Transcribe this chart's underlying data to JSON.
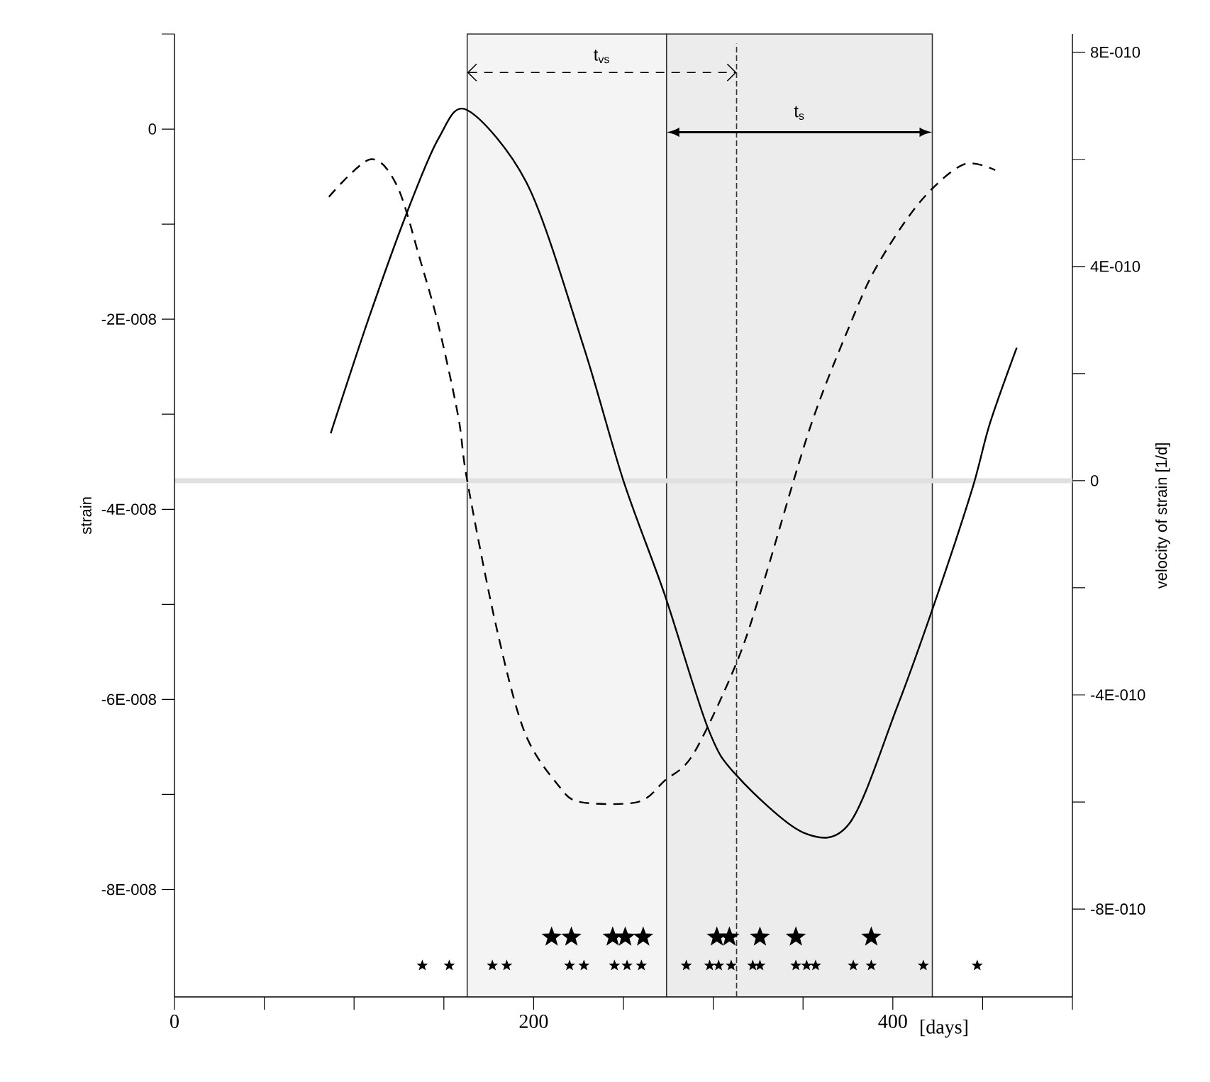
{
  "chart_data": {
    "type": "line",
    "xlabel": "[days]",
    "ylabel": "strain",
    "y2label": "velocity of strain [1/d]",
    "xlim": [
      0,
      500
    ],
    "xticks": [
      0,
      {
        "value": 50,
        "label": null
      },
      {
        "value": 100,
        "label": null
      },
      {
        "value": 150,
        "label": null
      },
      200,
      {
        "value": 250,
        "label": null
      },
      {
        "value": 300,
        "label": null
      },
      {
        "value": 350,
        "label": null
      },
      400,
      {
        "value": 450,
        "label": null
      },
      {
        "value": 500,
        "label": null
      }
    ],
    "ylim": [
      -9.13e-08,
      1e-08
    ],
    "yticks": [
      {
        "value": 1e-08,
        "label": null
      },
      0,
      {
        "value": -1e-08,
        "label": null
      },
      {
        "value": -2e-08,
        "label": "-2E-008"
      },
      {
        "value": -3e-08,
        "label": null
      },
      {
        "value": -4e-08,
        "label": "-4E-008"
      },
      {
        "value": -5e-08,
        "label": null
      },
      {
        "value": -6e-08,
        "label": "-6E-008"
      },
      {
        "value": -7e-08,
        "label": null
      },
      {
        "value": -8e-08,
        "label": "-8E-008"
      }
    ],
    "y2lim": [
      -9.64e-10,
      8.34e-10
    ],
    "y2ticks": [
      {
        "value": 8e-10,
        "label": "8E-010"
      },
      {
        "value": 6e-10,
        "label": null
      },
      {
        "value": 4e-10,
        "label": "4E-010"
      },
      {
        "value": 2e-10,
        "label": null
      },
      0,
      {
        "value": -2e-10,
        "label": null
      },
      {
        "value": -4e-10,
        "label": "-4E-010"
      },
      {
        "value": -6e-10,
        "label": null
      },
      {
        "value": -8e-10,
        "label": "-8E-010"
      }
    ],
    "series": [
      {
        "color": "#000000",
        "line_style": "solid",
        "x": [
          87,
          108,
          129,
          147,
          163,
          197,
          228,
          250,
          273,
          297,
          313,
          350,
          376,
          402,
          423,
          444,
          454,
          469
        ],
        "values": [
          -3.2e-08,
          -2e-08,
          -9e-09,
          -1e-09,
          2e-09,
          -6e-09,
          -2.3e-08,
          -3.7e-08,
          -4.9e-08,
          -6.3e-08,
          -6.8e-08,
          -7.4e-08,
          -7.3e-08,
          -6.1e-08,
          -5e-08,
          -3.8e-08,
          -3.1e-08,
          -2.3e-08
        ]
      },
      {
        "axis": "y2",
        "color": "#000000",
        "line_style": "dashed",
        "x": [
          86,
          109,
          124,
          137,
          147,
          158,
          163,
          179,
          195,
          214,
          226,
          258,
          273,
          289,
          313,
          328,
          354,
          376,
          391,
          415,
          439,
          457
        ],
        "values": [
          5.3e-10,
          6e-10,
          5.5e-10,
          4.1e-10,
          2.9e-10,
          1.2e-10,
          0,
          -2.7e-10,
          -4.7e-10,
          -5.7e-10,
          -6e-10,
          -6e-10,
          -5.6e-10,
          -5.1e-10,
          -3.4e-10,
          -1.9e-10,
          1e-10,
          2.9e-10,
          4e-10,
          5.2e-10,
          5.9e-10,
          5.8e-10
        ]
      },
      {
        "type": "scatter",
        "marker": "star",
        "color": "#000000",
        "x": [
          138,
          153,
          177,
          185,
          220,
          228,
          245,
          252,
          260,
          285,
          298,
          303,
          310,
          322,
          326,
          346,
          352,
          357,
          378,
          388,
          417,
          447
        ],
        "values": [
          -8.8e-08,
          -8.8e-08,
          -8.8e-08,
          -8.8e-08,
          -8.8e-08,
          -8.8e-08,
          -8.8e-08,
          -8.8e-08,
          -8.8e-08,
          -8.8e-08,
          -8.8e-08,
          -8.8e-08,
          -8.8e-08,
          -8.8e-08,
          -8.8e-08,
          -8.8e-08,
          -8.8e-08,
          -8.8e-08,
          -8.8e-08,
          -8.8e-08,
          -8.8e-08,
          -8.8e-08
        ]
      },
      {
        "type": "scatter",
        "marker": "star",
        "color": "#000000",
        "x": [
          210,
          221,
          244,
          251,
          261,
          302,
          309,
          326,
          346,
          388
        ],
        "values": [
          -8.5e-08,
          -8.5e-08,
          -8.5e-08,
          -8.5e-08,
          -8.5e-08,
          -8.5e-08,
          -8.5e-08,
          -8.5e-08,
          -8.5e-08,
          -8.5e-08
        ]
      }
    ],
    "bands": [
      {
        "axis": "x",
        "from": 163,
        "to": 274,
        "color": "#f4f4f4"
      },
      {
        "axis": "x",
        "from": 274,
        "to": 422,
        "color": "#ececec",
        "label": "t$_{s}$"
      }
    ],
    "annotations": [
      "t$_{vs}$"
    ],
    "ref_lines": [
      {
        "axis": "y2",
        "value": 0,
        "color": "#e0e0e0",
        "line_style": "solid"
      },
      {
        "axis": "x",
        "value": 313,
        "color": "#333333",
        "line_style": "dashed"
      }
    ]
  }
}
